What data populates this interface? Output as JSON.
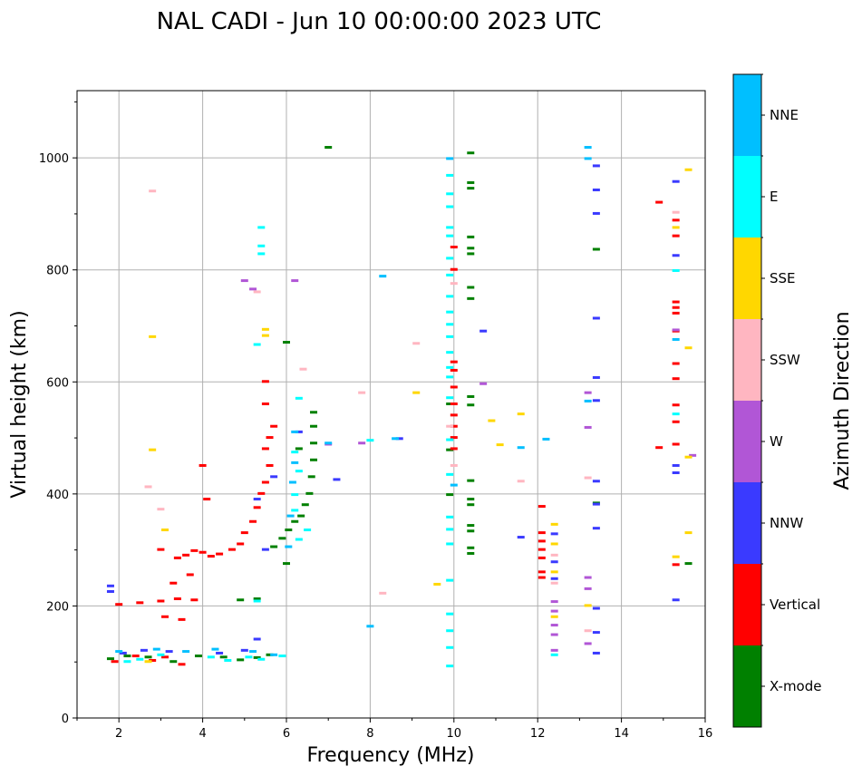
{
  "chart_data": {
    "type": "scatter",
    "title": "NAL CADI - Jun 10 00:00:00 2023 UTC",
    "xlabel": "Frequency (MHz)",
    "ylabel": "Virtual height (km)",
    "xlim": [
      1,
      16
    ],
    "ylim": [
      0,
      1120
    ],
    "xticks": [
      2,
      4,
      6,
      8,
      10,
      12,
      14,
      16
    ],
    "yticks": [
      0,
      200,
      400,
      600,
      800,
      1000
    ],
    "grid": true,
    "colorbar": {
      "label": "Azimuth Direction",
      "categories": [
        {
          "name": "X-mode",
          "color": "#008000"
        },
        {
          "name": "Vertical",
          "color": "#ff0000"
        },
        {
          "name": "NNW",
          "color": "#3a3aff"
        },
        {
          "name": "W",
          "color": "#b156d6"
        },
        {
          "name": "SSW",
          "color": "#ffb6c1"
        },
        {
          "name": "SSE",
          "color": "#ffd700"
        },
        {
          "name": "E",
          "color": "#00ffff"
        },
        {
          "name": "NNE",
          "color": "#00bfff"
        }
      ]
    },
    "series": [
      {
        "name": "X-mode",
        "points": [
          [
            1.8,
            105
          ],
          [
            2.2,
            110
          ],
          [
            2.7,
            108
          ],
          [
            3.3,
            100
          ],
          [
            3.9,
            110
          ],
          [
            4.5,
            108
          ],
          [
            4.9,
            103
          ],
          [
            5.3,
            107
          ],
          [
            5.6,
            112
          ],
          [
            4.9,
            210
          ],
          [
            5.3,
            212
          ],
          [
            5.7,
            305
          ],
          [
            5.9,
            320
          ],
          [
            6.05,
            335
          ],
          [
            6.2,
            350
          ],
          [
            6.35,
            360
          ],
          [
            6.45,
            380
          ],
          [
            6.55,
            400
          ],
          [
            6.6,
            430
          ],
          [
            6.65,
            460
          ],
          [
            6.65,
            490
          ],
          [
            6.65,
            520
          ],
          [
            6.65,
            545
          ],
          [
            6.3,
            480
          ],
          [
            6.0,
            670
          ],
          [
            6.0,
            275
          ],
          [
            7.0,
            1018
          ],
          [
            10.4,
            1008
          ],
          [
            10.4,
            955
          ],
          [
            10.4,
            945
          ],
          [
            10.4,
            858
          ],
          [
            10.4,
            838
          ],
          [
            10.4,
            828
          ],
          [
            10.4,
            768
          ],
          [
            10.4,
            748
          ],
          [
            10.4,
            573
          ],
          [
            10.4,
            558
          ],
          [
            10.4,
            423
          ],
          [
            10.4,
            390
          ],
          [
            10.4,
            380
          ],
          [
            10.4,
            343
          ],
          [
            10.4,
            333
          ],
          [
            10.4,
            303
          ],
          [
            10.4,
            293
          ],
          [
            9.9,
            560
          ],
          [
            9.9,
            478
          ],
          [
            9.9,
            398
          ],
          [
            13.4,
            836
          ],
          [
            13.4,
            383
          ],
          [
            15.6,
            275
          ]
        ]
      },
      {
        "name": "Vertical",
        "points": [
          [
            1.9,
            100
          ],
          [
            2.4,
            110
          ],
          [
            2.8,
            102
          ],
          [
            3.1,
            108
          ],
          [
            3.5,
            95
          ],
          [
            2.0,
            202
          ],
          [
            2.5,
            205
          ],
          [
            3.0,
            208
          ],
          [
            3.4,
            212
          ],
          [
            3.8,
            210
          ],
          [
            3.1,
            180
          ],
          [
            3.5,
            175
          ],
          [
            3.0,
            300
          ],
          [
            3.4,
            285
          ],
          [
            3.6,
            290
          ],
          [
            3.8,
            298
          ],
          [
            4.0,
            295
          ],
          [
            4.2,
            288
          ],
          [
            4.4,
            292
          ],
          [
            4.7,
            300
          ],
          [
            4.9,
            310
          ],
          [
            5.0,
            330
          ],
          [
            5.2,
            350
          ],
          [
            5.3,
            375
          ],
          [
            5.4,
            400
          ],
          [
            5.5,
            420
          ],
          [
            5.6,
            450
          ],
          [
            5.5,
            480
          ],
          [
            5.6,
            500
          ],
          [
            5.7,
            520
          ],
          [
            5.5,
            560
          ],
          [
            5.5,
            600
          ],
          [
            4.0,
            450
          ],
          [
            4.1,
            390
          ],
          [
            3.7,
            255
          ],
          [
            3.3,
            240
          ],
          [
            10.0,
            840
          ],
          [
            10.0,
            800
          ],
          [
            10.0,
            635
          ],
          [
            10.0,
            620
          ],
          [
            10.0,
            590
          ],
          [
            10.0,
            560
          ],
          [
            10.0,
            540
          ],
          [
            10.0,
            520
          ],
          [
            10.0,
            500
          ],
          [
            10.0,
            480
          ],
          [
            12.1,
            377
          ],
          [
            12.1,
            330
          ],
          [
            12.1,
            315
          ],
          [
            12.1,
            300
          ],
          [
            12.1,
            285
          ],
          [
            12.1,
            260
          ],
          [
            12.1,
            250
          ],
          [
            14.9,
            920
          ],
          [
            14.9,
            482
          ],
          [
            15.3,
            888
          ],
          [
            15.3,
            860
          ],
          [
            15.3,
            742
          ],
          [
            15.3,
            732
          ],
          [
            15.3,
            722
          ],
          [
            15.3,
            690
          ],
          [
            15.3,
            632
          ],
          [
            15.3,
            605
          ],
          [
            15.3,
            558
          ],
          [
            15.3,
            528
          ],
          [
            15.3,
            488
          ],
          [
            15.3,
            273
          ]
        ]
      },
      {
        "name": "NNW",
        "points": [
          [
            1.8,
            235
          ],
          [
            1.8,
            225
          ],
          [
            2.1,
            115
          ],
          [
            2.6,
            120
          ],
          [
            3.2,
            118
          ],
          [
            4.4,
            115
          ],
          [
            5.0,
            120
          ],
          [
            5.3,
            140
          ],
          [
            5.5,
            300
          ],
          [
            5.3,
            390
          ],
          [
            5.7,
            430
          ],
          [
            6.3,
            510
          ],
          [
            7.2,
            425
          ],
          [
            8.7,
            498
          ],
          [
            10.7,
            690
          ],
          [
            12.4,
            278
          ],
          [
            12.4,
            248
          ],
          [
            12.4,
            328
          ],
          [
            13.4,
            985
          ],
          [
            13.4,
            942
          ],
          [
            13.4,
            900
          ],
          [
            13.4,
            713
          ],
          [
            13.4,
            607
          ],
          [
            13.4,
            566
          ],
          [
            13.4,
            422
          ],
          [
            13.4,
            381
          ],
          [
            13.4,
            338
          ],
          [
            13.4,
            195
          ],
          [
            13.4,
            152
          ],
          [
            13.4,
            115
          ],
          [
            15.3,
            957
          ],
          [
            15.3,
            825
          ],
          [
            15.3,
            450
          ],
          [
            15.3,
            437
          ],
          [
            15.3,
            210
          ],
          [
            11.6,
            322
          ]
        ]
      },
      {
        "name": "W",
        "points": [
          [
            5.0,
            780
          ],
          [
            6.2,
            780
          ],
          [
            5.2,
            765
          ],
          [
            7.0,
            488
          ],
          [
            7.8,
            490
          ],
          [
            12.4,
            207
          ],
          [
            12.4,
            190
          ],
          [
            12.4,
            165
          ],
          [
            12.4,
            148
          ],
          [
            12.4,
            120
          ],
          [
            13.2,
            580
          ],
          [
            13.2,
            518
          ],
          [
            13.2,
            250
          ],
          [
            13.2,
            230
          ],
          [
            13.2,
            132
          ],
          [
            15.3,
            692
          ],
          [
            15.7,
            468
          ],
          [
            10.7,
            596
          ]
        ]
      },
      {
        "name": "SSW",
        "points": [
          [
            2.8,
            940
          ],
          [
            5.3,
            760
          ],
          [
            6.4,
            622
          ],
          [
            7.8,
            580
          ],
          [
            9.1,
            668
          ],
          [
            9.9,
            520
          ],
          [
            10.0,
            775
          ],
          [
            10.0,
            450
          ],
          [
            8.3,
            222
          ],
          [
            2.7,
            412
          ],
          [
            3.0,
            372
          ],
          [
            12.4,
            240
          ],
          [
            12.4,
            290
          ],
          [
            13.2,
            428
          ],
          [
            13.2,
            155
          ],
          [
            15.3,
            902
          ],
          [
            11.6,
            422
          ]
        ]
      },
      {
        "name": "SSE",
        "points": [
          [
            2.8,
            680
          ],
          [
            2.8,
            478
          ],
          [
            3.1,
            335
          ],
          [
            5.5,
            693
          ],
          [
            5.5,
            682
          ],
          [
            9.1,
            580
          ],
          [
            9.6,
            238
          ],
          [
            10.9,
            530
          ],
          [
            11.1,
            487
          ],
          [
            11.6,
            542
          ],
          [
            12.4,
            345
          ],
          [
            12.4,
            310
          ],
          [
            12.4,
            260
          ],
          [
            12.4,
            180
          ],
          [
            13.2,
            200
          ],
          [
            15.3,
            875
          ],
          [
            15.3,
            287
          ],
          [
            15.6,
            978
          ],
          [
            15.6,
            660
          ],
          [
            15.6,
            330
          ],
          [
            15.6,
            465
          ],
          [
            2.7,
            100
          ]
        ]
      },
      {
        "name": "E",
        "points": [
          [
            2.2,
            100
          ],
          [
            2.5,
            104
          ],
          [
            3.0,
            112
          ],
          [
            4.2,
            108
          ],
          [
            4.6,
            102
          ],
          [
            5.1,
            108
          ],
          [
            5.4,
            104
          ],
          [
            5.9,
            110
          ],
          [
            5.3,
            208
          ],
          [
            6.3,
            318
          ],
          [
            6.5,
            335
          ],
          [
            6.2,
            370
          ],
          [
            6.2,
            398
          ],
          [
            6.3,
            440
          ],
          [
            6.2,
            474
          ],
          [
            6.3,
            570
          ],
          [
            5.4,
            875
          ],
          [
            5.4,
            842
          ],
          [
            5.4,
            828
          ],
          [
            5.3,
            666
          ],
          [
            9.9,
            968
          ],
          [
            9.9,
            935
          ],
          [
            9.9,
            912
          ],
          [
            9.9,
            875
          ],
          [
            9.9,
            860
          ],
          [
            9.9,
            820
          ],
          [
            9.9,
            790
          ],
          [
            9.9,
            752
          ],
          [
            9.9,
            724
          ],
          [
            9.9,
            702
          ],
          [
            9.9,
            680
          ],
          [
            9.9,
            652
          ],
          [
            9.9,
            625
          ],
          [
            9.9,
            608
          ],
          [
            9.9,
            571
          ],
          [
            9.9,
            496
          ],
          [
            9.9,
            434
          ],
          [
            9.9,
            358
          ],
          [
            9.9,
            336
          ],
          [
            9.9,
            310
          ],
          [
            9.9,
            245
          ],
          [
            9.9,
            185
          ],
          [
            9.9,
            155
          ],
          [
            9.9,
            125
          ],
          [
            9.9,
            92
          ],
          [
            12.4,
            112
          ],
          [
            15.3,
            798
          ],
          [
            15.3,
            542
          ],
          [
            8.0,
            495
          ]
        ]
      },
      {
        "name": "NNE",
        "points": [
          [
            2.0,
            118
          ],
          [
            2.9,
            122
          ],
          [
            3.6,
            118
          ],
          [
            4.3,
            122
          ],
          [
            5.2,
            118
          ],
          [
            5.7,
            112
          ],
          [
            6.05,
            305
          ],
          [
            6.1,
            360
          ],
          [
            6.15,
            420
          ],
          [
            6.2,
            455
          ],
          [
            6.2,
            510
          ],
          [
            7.0,
            490
          ],
          [
            8.6,
            498
          ],
          [
            8.3,
            788
          ],
          [
            9.9,
            998
          ],
          [
            10.0,
            415
          ],
          [
            11.6,
            482
          ],
          [
            12.2,
            497
          ],
          [
            13.2,
            1018
          ],
          [
            13.2,
            998
          ],
          [
            13.2,
            565
          ],
          [
            15.3,
            675
          ],
          [
            8.0,
            163
          ]
        ]
      }
    ]
  }
}
